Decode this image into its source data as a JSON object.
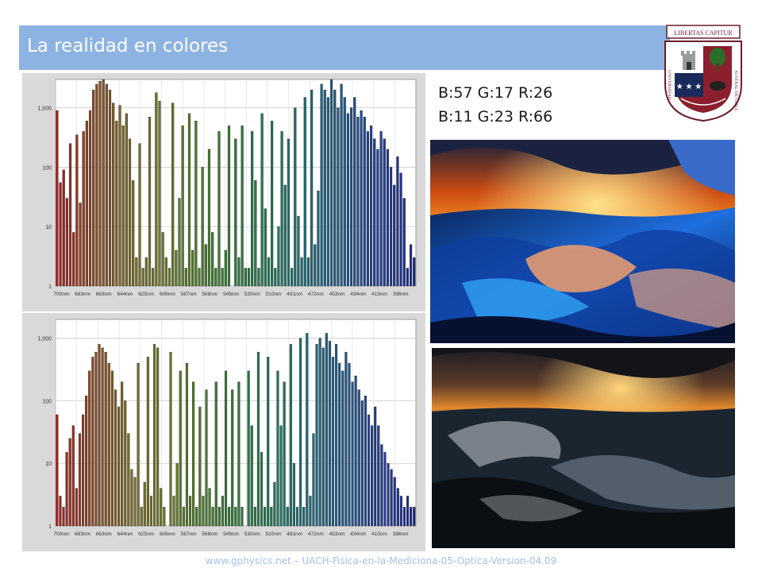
{
  "slide": {
    "title": "La realidad en colores",
    "footer": "www.gphysics.net – UACH-Fisica-en-la-Mediciona-05-Optica-Version-04.09",
    "rgb_labels": [
      "B:57 G:17 R:26",
      "B:11 G:23 R:66"
    ],
    "colors": {
      "title_bar": "#8db3e2",
      "title_text": "#ffffff",
      "footer_text": "#a5c0e6"
    }
  },
  "logo": {
    "motto": "LIBERTAS CAPITUR",
    "ring_left": "UNIVERSIDAD",
    "ring_right": "AUSTRAL DE CHILE"
  },
  "photos": [
    {
      "name": "stormy-sea-false-color",
      "style": "false-color"
    },
    {
      "name": "stormy-sea-original",
      "style": "original"
    }
  ],
  "chart_data": [
    {
      "type": "bar",
      "title": "",
      "xlabel": "",
      "ylabel": "",
      "yscale": "log",
      "ylim": [
        1,
        3000
      ],
      "ytick_labels": [
        "1",
        "10",
        "100",
        "1,000"
      ],
      "ytick_values": [
        1,
        10,
        100,
        1000
      ],
      "xtick_labels": [
        "700nm",
        "683nm",
        "663nm",
        "644nm",
        "625nm",
        "606nm",
        "587nm",
        "568nm",
        "549nm",
        "530nm",
        "510nm",
        "491nm",
        "472nm",
        "453nm",
        "434nm",
        "415nm",
        "396nm"
      ],
      "grid": true,
      "x_range_nm": [
        700,
        380
      ],
      "values": [
        900,
        55,
        90,
        30,
        250,
        8,
        350,
        25,
        400,
        600,
        900,
        2000,
        2500,
        2800,
        3000,
        2500,
        2000,
        1200,
        600,
        1100,
        500,
        800,
        300,
        60,
        3,
        250,
        2,
        3,
        700,
        2,
        1800,
        1300,
        8,
        3,
        2,
        1200,
        4,
        30,
        500,
        2,
        800,
        4,
        600,
        2,
        100,
        5,
        200,
        8,
        2,
        400,
        2,
        4,
        500,
        1,
        300,
        3,
        500,
        2,
        2,
        400,
        60,
        2,
        800,
        20,
        3,
        600,
        2,
        10,
        400,
        50,
        300,
        2,
        1000,
        15,
        3,
        1500,
        3,
        2000,
        5,
        40,
        2500,
        2000,
        1500,
        3000,
        2000,
        1000,
        2500,
        1500,
        800,
        1000,
        1500,
        700,
        900,
        700,
        400,
        500,
        300,
        200,
        400,
        300,
        200,
        100,
        50,
        150,
        80,
        30,
        2,
        5,
        3
      ],
      "series_colors": [
        "#a71d1d",
        "#8b4a25",
        "#7b6a27",
        "#6d7a2a",
        "#4d7b2c",
        "#2f7a3a",
        "#22785a",
        "#1f6c7a",
        "#225a8c",
        "#223f96",
        "#1c2a8e"
      ]
    },
    {
      "type": "bar",
      "title": "",
      "xlabel": "",
      "ylabel": "",
      "yscale": "log",
      "ylim": [
        1,
        2000
      ],
      "ytick_labels": [
        "1",
        "10",
        "100",
        "1,000"
      ],
      "ytick_values": [
        1,
        10,
        100,
        1000
      ],
      "xtick_labels": [
        "700nm",
        "683nm",
        "663nm",
        "644nm",
        "625nm",
        "606nm",
        "587nm",
        "568nm",
        "549nm",
        "530nm",
        "510nm",
        "491nm",
        "472nm",
        "453nm",
        "434nm",
        "415nm",
        "396nm"
      ],
      "grid": true,
      "x_range_nm": [
        700,
        380
      ],
      "values": [
        60,
        3,
        2,
        15,
        25,
        40,
        4,
        30,
        60,
        120,
        300,
        500,
        600,
        800,
        700,
        600,
        400,
        300,
        150,
        80,
        200,
        100,
        30,
        8,
        6,
        400,
        2,
        5,
        500,
        3,
        800,
        700,
        4,
        2,
        1,
        600,
        3,
        10,
        300,
        2,
        400,
        3,
        200,
        2,
        80,
        3,
        150,
        4,
        2,
        200,
        2,
        3,
        300,
        2,
        150,
        2,
        200,
        2,
        1,
        300,
        40,
        2,
        600,
        15,
        2,
        500,
        2,
        5,
        300,
        40,
        200,
        2,
        800,
        10,
        2,
        1000,
        2,
        1200,
        3,
        30,
        800,
        1000,
        700,
        1200,
        900,
        500,
        800,
        400,
        300,
        600,
        400,
        200,
        250,
        150,
        100,
        120,
        60,
        40,
        80,
        40,
        20,
        15,
        10,
        8,
        6,
        4,
        3,
        2,
        3,
        2,
        2
      ],
      "series_colors": [
        "#a71d1d",
        "#8b4a25",
        "#7b6a27",
        "#6d7a2a",
        "#4d7b2c",
        "#2f7a3a",
        "#22785a",
        "#1f6c7a",
        "#225a8c",
        "#223f96",
        "#1c2a8e"
      ]
    }
  ]
}
